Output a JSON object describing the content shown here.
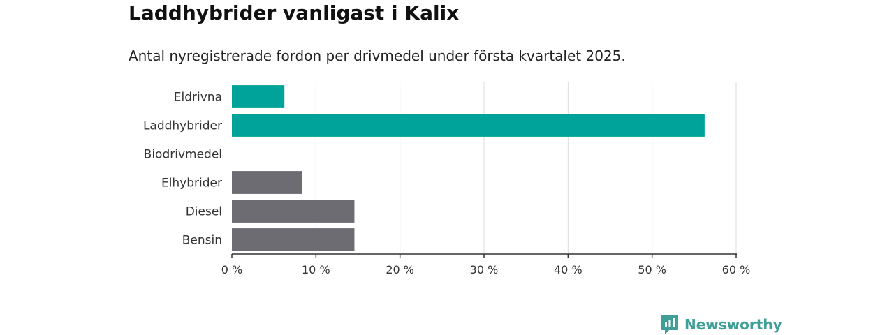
{
  "chart_data": {
    "type": "bar",
    "orientation": "horizontal",
    "title": "Laddhybrider vanligast i Kalix",
    "subtitle": "Antal nyregistrerade fordon per drivmedel under första kvartalet 2025.",
    "categories": [
      "Eldrivna",
      "Laddhybrider",
      "Biodrivmedel",
      "Elhybrider",
      "Diesel",
      "Bensin"
    ],
    "values": [
      6.25,
      56.25,
      0,
      8.33,
      14.58,
      14.58
    ],
    "bar_colors": [
      "#00a399",
      "#00a399",
      "#00a399",
      "#6d6c72",
      "#6d6c72",
      "#6d6c72"
    ],
    "xlim": [
      0,
      60
    ],
    "x_ticks": [
      0,
      10,
      20,
      30,
      40,
      50,
      60
    ],
    "x_tick_labels": [
      "0 %",
      "10 %",
      "20 %",
      "30 %",
      "40 %",
      "50 %",
      "60 %"
    ],
    "grid": true,
    "legend": "none"
  },
  "brand": {
    "name": "Newsworthy",
    "color": "#3f9f96",
    "icon": "newsworthy-logo-icon"
  }
}
